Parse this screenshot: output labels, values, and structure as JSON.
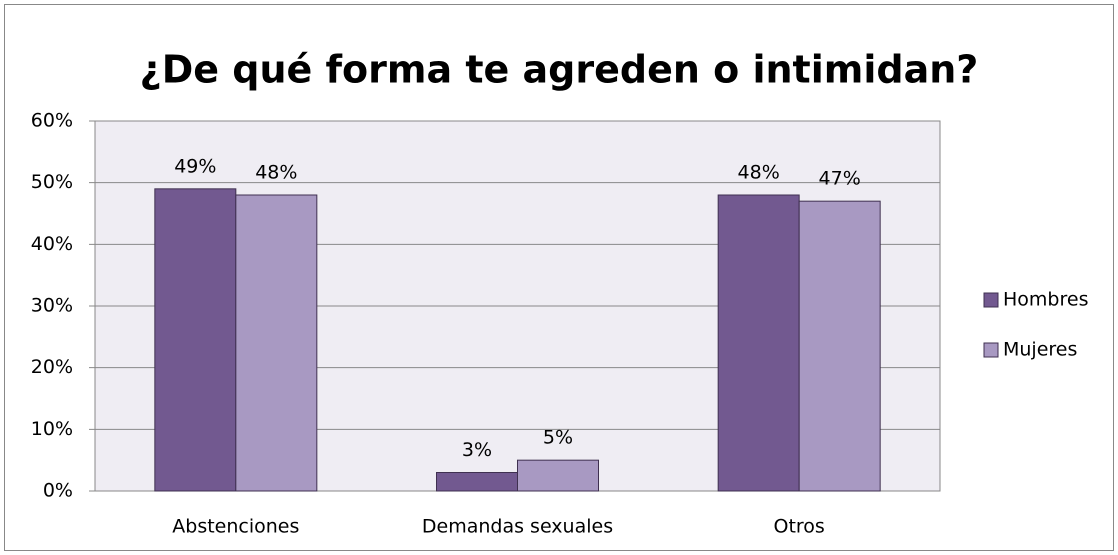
{
  "chart_data": {
    "type": "bar",
    "title": "¿De qué forma te agreden o intimidan?",
    "categories": [
      "Abstenciones",
      "Demandas sexuales",
      "Otros"
    ],
    "series": [
      {
        "name": "Hombres",
        "color": "#725990",
        "values": [
          49,
          3,
          48
        ],
        "value_labels": [
          "49%",
          "3%",
          "48%"
        ]
      },
      {
        "name": "Mujeres",
        "color": "#a899c2",
        "values": [
          48,
          5,
          47
        ],
        "value_labels": [
          "48%",
          "5%",
          "47%"
        ]
      }
    ],
    "ylim": [
      0,
      60
    ],
    "yticks": [
      {
        "value": 0,
        "label": "0%"
      },
      {
        "value": 10,
        "label": "10%"
      },
      {
        "value": 20,
        "label": "20%"
      },
      {
        "value": 30,
        "label": "30%"
      },
      {
        "value": 40,
        "label": "40%"
      },
      {
        "value": 50,
        "label": "50%"
      },
      {
        "value": 60,
        "label": "60%"
      }
    ],
    "grid": true,
    "legend": "right"
  }
}
